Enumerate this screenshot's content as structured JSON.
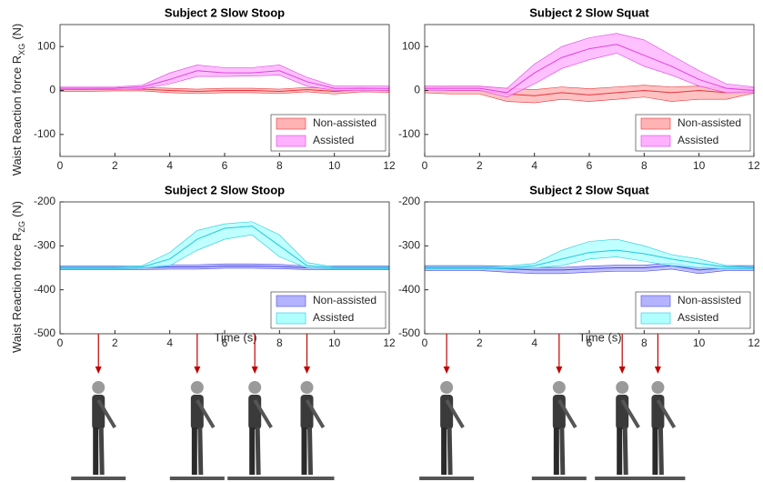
{
  "chart_data": [
    {
      "type": "line",
      "title": "Subject 2 Slow Stoop",
      "ylabel": {
        "text": "Waist Reaction force R",
        "sub": "XG",
        "unit": "(N)"
      },
      "x": [
        0,
        1,
        2,
        3,
        4,
        5,
        6,
        7,
        8,
        9,
        10,
        11,
        12
      ],
      "xlim": [
        0,
        12
      ],
      "xticks": [
        0,
        2,
        4,
        6,
        8,
        10,
        12
      ],
      "ylim": [
        -150,
        150
      ],
      "yticks": [
        -100,
        0,
        100
      ],
      "series": [
        {
          "name": "Non-assisted",
          "color": "#e8343c",
          "fill": "#ffb3b3",
          "values": [
            2,
            2,
            3,
            3,
            0,
            -2,
            0,
            0,
            -2,
            2,
            -2,
            2,
            0
          ],
          "lower": [
            -2,
            -2,
            -1,
            -1,
            -5,
            -7,
            -5,
            -5,
            -7,
            -3,
            -8,
            -3,
            -4
          ],
          "upper": [
            6,
            6,
            7,
            7,
            5,
            3,
            5,
            5,
            3,
            7,
            4,
            7,
            4
          ]
        },
        {
          "name": "Assisted",
          "color": "#e040e0",
          "fill": "#ffb0ff",
          "values": [
            5,
            5,
            5,
            8,
            25,
            45,
            40,
            40,
            45,
            20,
            5,
            5,
            5
          ],
          "lower": [
            2,
            2,
            2,
            4,
            15,
            32,
            32,
            33,
            35,
            10,
            0,
            0,
            0
          ],
          "upper": [
            8,
            8,
            8,
            12,
            40,
            58,
            52,
            52,
            58,
            30,
            10,
            10,
            10
          ]
        }
      ]
    },
    {
      "type": "line",
      "title": "Subject 2 Slow Squat",
      "x": [
        0,
        1,
        2,
        3,
        4,
        5,
        6,
        7,
        8,
        9,
        10,
        11,
        12
      ],
      "xlim": [
        0,
        12
      ],
      "xticks": [
        0,
        2,
        4,
        6,
        8,
        10,
        12
      ],
      "ylim": [
        -150,
        150
      ],
      "yticks": [
        -100,
        0,
        100
      ],
      "series": [
        {
          "name": "Non-assisted",
          "color": "#e8343c",
          "fill": "#ffb3b3",
          "values": [
            3,
            0,
            0,
            -8,
            -12,
            -5,
            -10,
            -5,
            0,
            -5,
            0,
            -5,
            0
          ],
          "lower": [
            -5,
            -8,
            -8,
            -25,
            -28,
            -20,
            -25,
            -20,
            -15,
            -25,
            -20,
            -20,
            -6
          ],
          "upper": [
            10,
            8,
            8,
            5,
            2,
            8,
            4,
            8,
            12,
            8,
            10,
            5,
            6
          ]
        },
        {
          "name": "Assisted",
          "color": "#e040e0",
          "fill": "#ffb0ff",
          "values": [
            5,
            5,
            5,
            -5,
            40,
            75,
            95,
            105,
            80,
            55,
            25,
            5,
            0
          ],
          "lower": [
            0,
            0,
            0,
            -15,
            15,
            50,
            70,
            85,
            55,
            35,
            10,
            -5,
            -5
          ],
          "upper": [
            10,
            10,
            10,
            5,
            60,
            100,
            120,
            130,
            115,
            80,
            45,
            15,
            8
          ]
        }
      ]
    },
    {
      "type": "line",
      "title": "Subject 2 Slow Stoop",
      "ylabel": {
        "text": "Waist Reaction force R",
        "sub": "ZG",
        "unit": "(N)"
      },
      "xlabel": "Time (s)",
      "x": [
        0,
        1,
        2,
        3,
        4,
        5,
        6,
        7,
        8,
        9,
        10,
        11,
        12
      ],
      "xlim": [
        0,
        12
      ],
      "xticks": [
        0,
        2,
        4,
        6,
        8,
        10,
        12
      ],
      "ylim": [
        -500,
        -200
      ],
      "yticks": [
        -500,
        -400,
        -300,
        -200
      ],
      "snapshot_times": [
        1.4,
        5,
        7.1,
        9
      ],
      "series": [
        {
          "name": "Non-assisted",
          "color": "#4a4ae0",
          "fill": "#b3b3ff",
          "values": [
            -350,
            -350,
            -350,
            -350,
            -348,
            -348,
            -346,
            -346,
            -347,
            -350,
            -350,
            -350,
            -350
          ],
          "lower": [
            -354,
            -354,
            -354,
            -354,
            -353,
            -353,
            -351,
            -351,
            -352,
            -354,
            -354,
            -354,
            -354
          ],
          "upper": [
            -346,
            -346,
            -346,
            -346,
            -343,
            -343,
            -341,
            -341,
            -342,
            -346,
            -346,
            -346,
            -346
          ]
        },
        {
          "name": "Assisted",
          "color": "#20c8e0",
          "fill": "#b0ffff",
          "values": [
            -350,
            -350,
            -350,
            -348,
            -330,
            -285,
            -260,
            -255,
            -300,
            -345,
            -350,
            -350,
            -350
          ],
          "lower": [
            -352,
            -352,
            -352,
            -351,
            -345,
            -310,
            -285,
            -275,
            -325,
            -350,
            -352,
            -352,
            -352
          ],
          "upper": [
            -348,
            -348,
            -348,
            -345,
            -315,
            -265,
            -250,
            -245,
            -275,
            -338,
            -348,
            -348,
            -348
          ]
        }
      ]
    },
    {
      "type": "line",
      "title": "Subject 2 Slow Squat",
      "xlabel": "Time (s)",
      "x": [
        0,
        1,
        2,
        3,
        4,
        5,
        6,
        7,
        8,
        9,
        10,
        11,
        12
      ],
      "xlim": [
        0,
        12
      ],
      "xticks": [
        0,
        2,
        4,
        6,
        8,
        10,
        12
      ],
      "ylim": [
        -500,
        -200
      ],
      "yticks": [
        -500,
        -400,
        -300,
        -200
      ],
      "snapshot_times": [
        0.8,
        4.9,
        7.2,
        8.5
      ],
      "series": [
        {
          "name": "Non-assisted",
          "color": "#4a4ae0",
          "fill": "#b3b3ff",
          "values": [
            -350,
            -350,
            -350,
            -352,
            -355,
            -355,
            -352,
            -350,
            -350,
            -345,
            -355,
            -350,
            -350
          ],
          "lower": [
            -356,
            -356,
            -356,
            -360,
            -363,
            -363,
            -360,
            -358,
            -358,
            -353,
            -363,
            -356,
            -356
          ],
          "upper": [
            -345,
            -345,
            -345,
            -346,
            -349,
            -349,
            -346,
            -344,
            -344,
            -339,
            -349,
            -345,
            -345
          ]
        },
        {
          "name": "Assisted",
          "color": "#20c8e0",
          "fill": "#b0ffff",
          "values": [
            -350,
            -350,
            -350,
            -350,
            -345,
            -330,
            -315,
            -310,
            -318,
            -330,
            -340,
            -348,
            -350
          ],
          "lower": [
            -352,
            -352,
            -352,
            -352,
            -350,
            -345,
            -330,
            -325,
            -335,
            -345,
            -350,
            -352,
            -352
          ],
          "upper": [
            -348,
            -348,
            -348,
            -346,
            -340,
            -310,
            -290,
            -285,
            -300,
            -320,
            -330,
            -345,
            -348
          ]
        }
      ]
    }
  ]
}
